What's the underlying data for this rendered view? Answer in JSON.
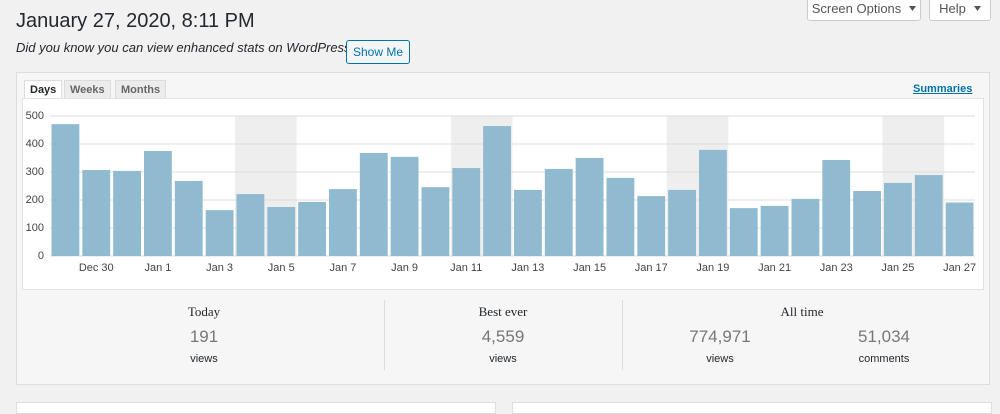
{
  "header": {
    "title": "January 27, 2020, 8:11 PM",
    "notice": "Did you know you can view enhanced stats on WordPress.com?",
    "button": "Show Me",
    "screen_options": "Screen Options",
    "help": "Help"
  },
  "tabs": [
    "Days",
    "Weeks",
    "Months"
  ],
  "summaries_link": "Summaries",
  "chart_data": {
    "type": "bar",
    "categories": [
      null,
      "Dec 30",
      null,
      "Jan 1",
      null,
      "Jan 3",
      null,
      "Jan 5",
      null,
      "Jan 7",
      null,
      "Jan 9",
      null,
      "Jan 11",
      null,
      "Jan 13",
      null,
      "Jan 15",
      null,
      "Jan 17",
      null,
      "Jan 19",
      null,
      "Jan 21",
      null,
      "Jan 23",
      null,
      "Jan 25",
      null,
      "Jan 27"
    ],
    "values": [
      471,
      307,
      304,
      375,
      268,
      164,
      221,
      175,
      193,
      239,
      368,
      354,
      246,
      314,
      464,
      236,
      311,
      350,
      279,
      214,
      236,
      379,
      171,
      179,
      204,
      343,
      232,
      261,
      289,
      191
    ],
    "color": "#8fbacf",
    "ylim": [
      0,
      500
    ],
    "yticks": [
      0,
      100,
      200,
      300,
      400,
      500
    ],
    "grid": true,
    "weekend_indices": [
      6,
      7,
      13,
      14,
      20,
      21,
      27,
      28
    ]
  },
  "summary": [
    {
      "title": "Today",
      "items": [
        {
          "value": "191",
          "label": "views"
        }
      ]
    },
    {
      "title": "Best ever",
      "items": [
        {
          "value": "4,559",
          "label": "views"
        }
      ]
    },
    {
      "title": "All time",
      "items": [
        {
          "value": "774,971",
          "label": "views"
        },
        {
          "value": "51,034",
          "label": "comments"
        }
      ]
    }
  ]
}
